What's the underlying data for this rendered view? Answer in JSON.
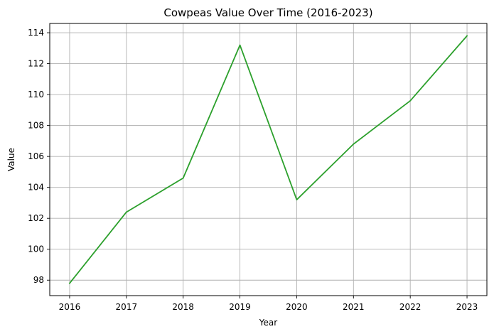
{
  "chart_data": {
    "type": "line",
    "title": "Cowpeas Value Over Time (2016-2023)",
    "xlabel": "Year",
    "ylabel": "Value",
    "x": [
      2016,
      2017,
      2018,
      2019,
      2020,
      2021,
      2022,
      2023
    ],
    "x_tick_labels": [
      "2016",
      "2017",
      "2018",
      "2019",
      "2020",
      "2021",
      "2022",
      "2023"
    ],
    "y_ticks": [
      98,
      100,
      102,
      104,
      106,
      108,
      110,
      112,
      114
    ],
    "y_tick_labels": [
      "98",
      "100",
      "102",
      "104",
      "106",
      "108",
      "110",
      "112",
      "114"
    ],
    "ylim": [
      97.0,
      114.6
    ],
    "xlim": [
      2015.65,
      2023.35
    ],
    "grid": true,
    "legend": "none",
    "series": [
      {
        "color": "#2ca02c",
        "values": [
          97.8,
          102.4,
          104.6,
          113.2,
          103.2,
          106.8,
          109.6,
          113.8
        ]
      }
    ]
  }
}
